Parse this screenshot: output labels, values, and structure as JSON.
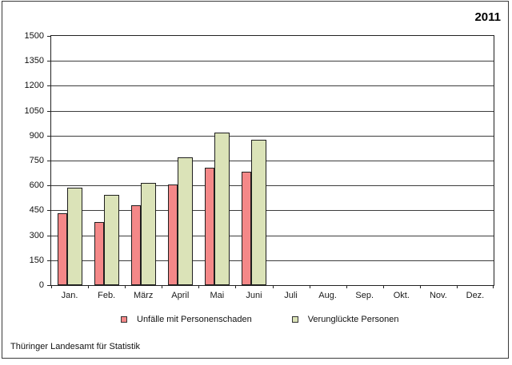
{
  "title": "2011",
  "footer": "Thüringer Landesamt für Statistik",
  "colors": {
    "series1": "#f48888",
    "series2": "#dbe3b8",
    "gridline": "#3c3c3c",
    "frame_border": "#3a3a3a"
  },
  "legend": [
    {
      "label": "Unfälle mit Personenschaden",
      "color": "#f48888"
    },
    {
      "label": "Verunglückte Personen",
      "color": "#dbe3b8"
    }
  ],
  "chart_data": {
    "type": "bar",
    "title": "2011",
    "categories": [
      "Jan.",
      "Feb.",
      "März",
      "April",
      "Mai",
      "Juni",
      "Juli",
      "Aug.",
      "Sep.",
      "Okt.",
      "Nov.",
      "Dez."
    ],
    "series": [
      {
        "name": "Unfälle mit Personenschaden",
        "color": "#f48888",
        "values": [
          435,
          380,
          480,
          605,
          705,
          685,
          null,
          null,
          null,
          null,
          null,
          null
        ]
      },
      {
        "name": "Verunglückte Personen",
        "color": "#dbe3b8",
        "values": [
          585,
          545,
          615,
          770,
          920,
          875,
          null,
          null,
          null,
          null,
          null,
          null
        ]
      }
    ],
    "xlabel": "",
    "ylabel": "",
    "ylim": [
      0,
      1500
    ],
    "yticks": [
      0,
      150,
      300,
      450,
      600,
      750,
      900,
      1050,
      1200,
      1350,
      1500
    ],
    "grid": "horizontal",
    "legend_position": "bottom"
  }
}
